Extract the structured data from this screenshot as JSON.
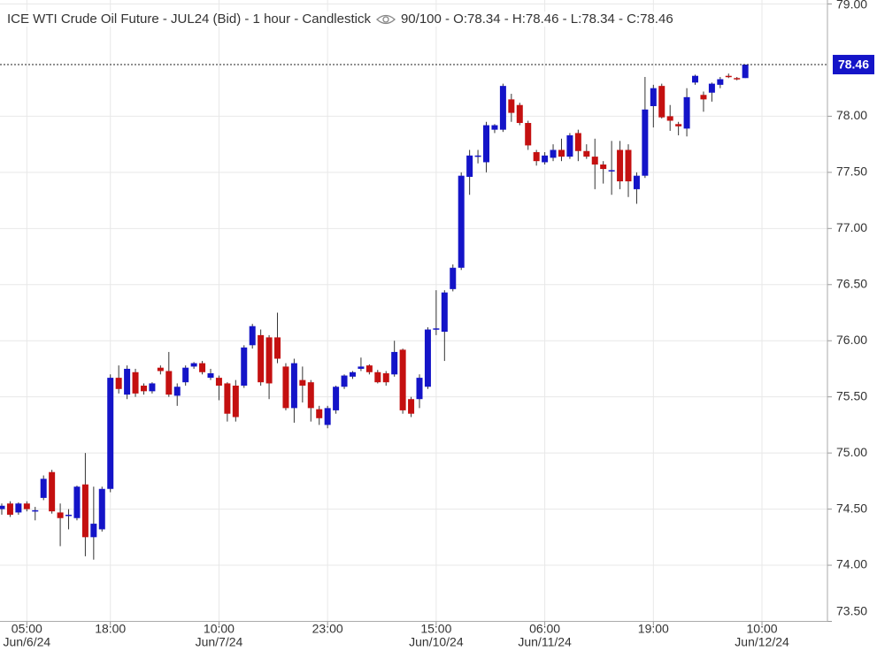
{
  "chart_data": {
    "type": "candlestick",
    "title": "ICE WTI Crude Oil Future - JUL24 (Bid) - 1 hour - Candlestick",
    "info": "90/100 - O:78.34 - H:78.46 - L:78.34 - C:78.46",
    "up_color": "#1414c8",
    "down_color": "#c41010",
    "last_price": 78.46,
    "grid": true,
    "ylim": [
      73.5,
      79.0
    ],
    "yticks": [
      {
        "value": 73.5,
        "label": "73.50"
      },
      {
        "value": 74,
        "label": "74.00"
      },
      {
        "value": 74.5,
        "label": "74.50"
      },
      {
        "value": 75,
        "label": "75.00"
      },
      {
        "value": 75.5,
        "label": "75.50"
      },
      {
        "value": 76,
        "label": "76.00"
      },
      {
        "value": 76.5,
        "label": "76.50"
      },
      {
        "value": 77,
        "label": "77.00"
      },
      {
        "value": 77.5,
        "label": "77.50"
      },
      {
        "value": 78,
        "label": "78.00"
      },
      {
        "value": 79,
        "label": "79.00"
      }
    ],
    "xticks": [
      {
        "value": 3,
        "label": "05:00",
        "date": "Jun/6/24"
      },
      {
        "value": 13,
        "label": "18:00"
      },
      {
        "value": 26,
        "label": "10:00",
        "date": "Jun/7/24"
      },
      {
        "value": 39,
        "label": "23:00"
      },
      {
        "value": 52,
        "label": "15:00",
        "date": "Jun/10/24"
      },
      {
        "value": 65,
        "label": "06:00",
        "date": "Jun/11/24"
      },
      {
        "value": 78,
        "label": "19:00"
      },
      {
        "value": 91,
        "label": "10:00",
        "date": "Jun/12/24"
      }
    ],
    "open": [
      74.5,
      74.55,
      74.47,
      74.55,
      74.49,
      74.6,
      74.83,
      74.47,
      74.45,
      74.42,
      74.72,
      74.25,
      74.32,
      74.68,
      75.67,
      75.52,
      75.72,
      75.6,
      75.55,
      75.76,
      75.73,
      75.51,
      75.63,
      75.77,
      75.8,
      75.67,
      75.67,
      75.62,
      75.6,
      75.6,
      75.96,
      76.05,
      76.03,
      76.03,
      75.77,
      75.4,
      75.65,
      75.63,
      75.39,
      75.25,
      75.38,
      75.59,
      75.68,
      75.75,
      75.78,
      75.72,
      75.71,
      75.7,
      75.92,
      75.48,
      75.48,
      75.59,
      76.1,
      76.08,
      76.46,
      76.65,
      77.46,
      77.64,
      77.59,
      77.88,
      77.88,
      78.15,
      78.1,
      77.94,
      77.68,
      77.59,
      77.63,
      77.7,
      77.64,
      77.85,
      77.69,
      77.64,
      77.57,
      77.51,
      77.7,
      77.7,
      77.35,
      77.47,
      78.09,
      78.27,
      78.0,
      77.93,
      77.89,
      78.3,
      78.19,
      78.21,
      78.28,
      78.36,
      78.34,
      78.34
    ],
    "high": [
      74.55,
      74.57,
      74.56,
      74.57,
      74.52,
      74.8,
      74.85,
      74.55,
      74.5,
      74.71,
      75.0,
      74.7,
      74.7,
      75.7,
      75.78,
      75.78,
      75.75,
      75.62,
      75.63,
      75.78,
      75.9,
      75.62,
      75.78,
      75.81,
      75.82,
      75.75,
      75.69,
      75.63,
      75.65,
      75.96,
      76.15,
      76.1,
      76.05,
      76.25,
      75.8,
      75.84,
      75.77,
      75.65,
      75.42,
      75.42,
      75.6,
      75.7,
      75.73,
      75.85,
      75.79,
      75.74,
      75.73,
      76.0,
      75.93,
      75.5,
      75.7,
      76.12,
      76.45,
      76.45,
      76.68,
      77.5,
      77.7,
      77.7,
      77.95,
      77.93,
      78.29,
      78.2,
      78.12,
      77.96,
      77.7,
      77.68,
      77.75,
      77.8,
      77.85,
      77.88,
      77.75,
      77.8,
      77.6,
      77.78,
      77.78,
      77.75,
      77.5,
      78.35,
      78.28,
      78.29,
      78.1,
      77.95,
      78.25,
      78.37,
      78.22,
      78.3,
      78.35,
      78.38,
      78.35,
      78.46
    ],
    "low": [
      74.45,
      74.43,
      74.45,
      74.48,
      74.4,
      74.58,
      74.46,
      74.17,
      74.32,
      74.4,
      74.08,
      74.05,
      74.3,
      74.65,
      75.53,
      75.48,
      75.5,
      75.52,
      75.53,
      75.7,
      75.5,
      75.42,
      75.6,
      75.75,
      75.7,
      75.65,
      75.47,
      75.28,
      75.28,
      75.58,
      75.93,
      75.6,
      75.48,
      75.8,
      75.38,
      75.27,
      75.45,
      75.28,
      75.25,
      75.22,
      75.35,
      75.57,
      75.66,
      75.73,
      75.7,
      75.62,
      75.6,
      75.68,
      75.35,
      75.32,
      75.4,
      75.57,
      76.05,
      75.82,
      76.44,
      76.63,
      77.3,
      77.58,
      77.5,
      77.85,
      77.86,
      77.95,
      77.92,
      77.7,
      77.56,
      77.57,
      77.6,
      77.6,
      77.62,
      77.6,
      77.62,
      77.35,
      77.4,
      77.3,
      77.35,
      77.28,
      77.22,
      77.45,
      77.9,
      77.98,
      77.87,
      77.83,
      77.82,
      78.28,
      78.04,
      78.13,
      78.25,
      78.34,
      78.32,
      78.34
    ],
    "close": [
      74.53,
      74.45,
      74.55,
      74.5,
      74.49,
      74.77,
      74.48,
      74.42,
      74.45,
      74.7,
      74.25,
      74.37,
      74.68,
      75.67,
      75.57,
      75.75,
      75.53,
      75.55,
      75.62,
      75.73,
      75.52,
      75.59,
      75.76,
      75.8,
      75.72,
      75.71,
      75.6,
      75.35,
      75.32,
      75.94,
      76.13,
      75.63,
      75.62,
      75.84,
      75.4,
      75.8,
      75.6,
      75.4,
      75.31,
      75.4,
      75.59,
      75.69,
      75.72,
      75.77,
      75.72,
      75.63,
      75.63,
      75.9,
      75.38,
      75.35,
      75.67,
      76.1,
      76.11,
      76.43,
      76.65,
      77.47,
      77.65,
      77.65,
      77.92,
      77.92,
      78.27,
      78.03,
      77.94,
      77.74,
      77.6,
      77.65,
      77.7,
      77.64,
      77.83,
      77.69,
      77.64,
      77.57,
      77.53,
      77.52,
      77.42,
      77.42,
      77.47,
      78.06,
      78.25,
      77.99,
      77.96,
      77.91,
      78.17,
      78.36,
      78.15,
      78.29,
      78.33,
      78.35,
      78.33,
      78.46
    ]
  }
}
